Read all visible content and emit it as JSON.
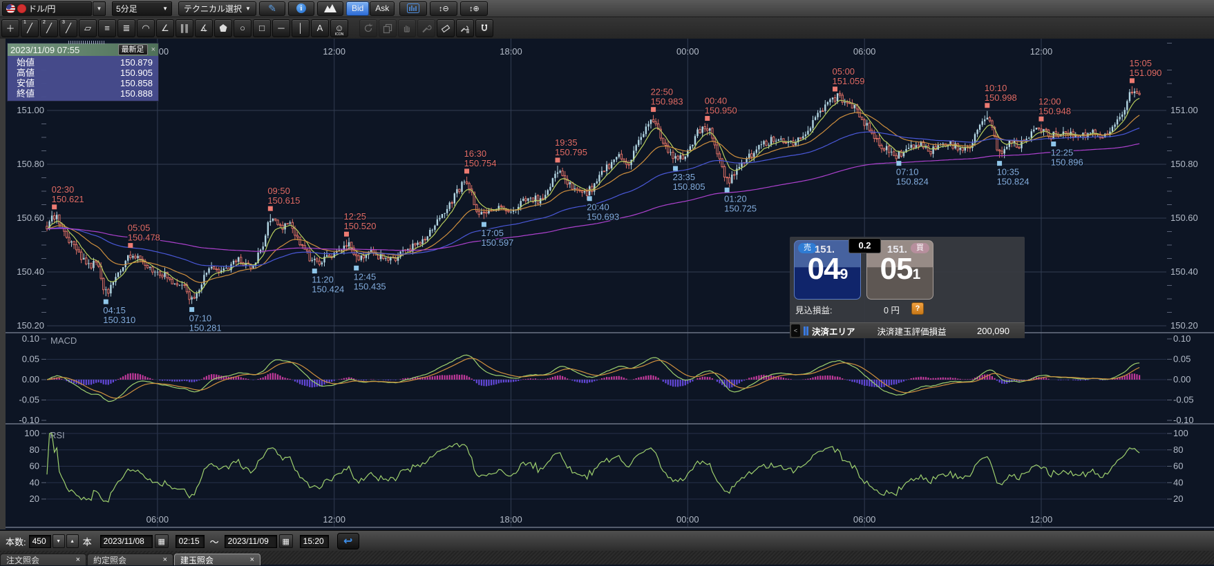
{
  "toolbar": {
    "pair": "ドル/円",
    "timeframe": "5分足",
    "technical_button": "テクニカル選択",
    "bid": "Bid",
    "ask": "Ask",
    "dropdown_glyph": "▼",
    "zoom_out_glyph": "↕⊖",
    "zoom_in_glyph": "↕⊕",
    "pencil_glyph": "✎",
    "info_glyph": "i"
  },
  "tools": [
    {
      "name": "crosshair-tool",
      "glyph": "＋"
    },
    {
      "name": "trendline-1-tool",
      "glyph": "╱",
      "badge": "1"
    },
    {
      "name": "trendline-2-tool",
      "glyph": "╱",
      "badge": "2"
    },
    {
      "name": "trendline-3-tool",
      "glyph": "╱",
      "badge": "3"
    },
    {
      "name": "ruler-tool",
      "glyph": "▱"
    },
    {
      "name": "parallel-lines-tool",
      "glyph": "≡"
    },
    {
      "name": "multi-lines-tool",
      "glyph": "≣"
    },
    {
      "name": "fibonacci-arc-tool",
      "glyph": "◠"
    },
    {
      "name": "fibonacci-fan-tool",
      "glyph": "∠"
    },
    {
      "name": "vertical-lines-tool",
      "glyph": "∥∥"
    },
    {
      "name": "gann-fan-tool",
      "glyph": "∡"
    },
    {
      "name": "pentagon-tool",
      "shape": "penta"
    },
    {
      "name": "ellipse-tool",
      "glyph": "○"
    },
    {
      "name": "rectangle-tool",
      "glyph": "□"
    },
    {
      "name": "horizontal-line-tool",
      "glyph": "─"
    },
    {
      "name": "vertical-line-tool",
      "glyph": "│"
    },
    {
      "name": "text-tool",
      "glyph": "A"
    },
    {
      "name": "icon-stamp-tool",
      "glyph": "☺",
      "label": "ICON"
    },
    {
      "name": "time-jump-tool",
      "shape": "undo",
      "disabled": true,
      "gap": true
    },
    {
      "name": "copy-tool",
      "shape": "copy",
      "disabled": true
    },
    {
      "name": "hand-tool",
      "shape": "hand",
      "disabled": true
    },
    {
      "name": "wrench-tool",
      "shape": "wrench",
      "disabled": true
    },
    {
      "name": "eraser-tool",
      "shape": "eraser"
    },
    {
      "name": "settings-tool",
      "shape": "settings"
    },
    {
      "name": "magnet-tool",
      "shape": "magnet"
    }
  ],
  "info_box": {
    "datetime": "2023/11/09 07:55",
    "latest_button": "最新足",
    "close_icon": "×",
    "rows": [
      {
        "label": "始値",
        "value": "150.879"
      },
      {
        "label": "高値",
        "value": "150.905"
      },
      {
        "label": "安値",
        "value": "150.858"
      },
      {
        "label": "終値",
        "value": "150.888"
      }
    ]
  },
  "order_panel": {
    "sell_badge": "売",
    "buy_badge": "買",
    "spread": "0.2",
    "sell_prefix": "151.",
    "sell_main": "04",
    "sell_sub": "9",
    "buy_prefix": "151.",
    "buy_main": "05",
    "buy_sub": "1",
    "pl_label": "見込損益:",
    "pl_value": "0 円",
    "help_glyph": "?",
    "footer_area": "決済エリア",
    "footer_label": "決済建玉評価損益",
    "footer_value": "200,090",
    "collapse_glyph": "<"
  },
  "bottom_bar": {
    "count_label": "本数:",
    "count": "450",
    "unit": "本",
    "from_date": "2023/11/08",
    "from_time": "02:15",
    "tilde": "～",
    "to_date": "2023/11/09",
    "to_time": "15:20",
    "down_glyph": "▼",
    "up_glyph": "▲",
    "calendar_glyph": "▦",
    "return_glyph": "↩"
  },
  "tabs": [
    {
      "label": "注文照会",
      "close": "×",
      "active": false
    },
    {
      "label": "約定照会",
      "close": "×",
      "active": false
    },
    {
      "label": "建玉照会",
      "close": "×",
      "active": true
    }
  ],
  "chart_data": {
    "type": "candlestick",
    "pair": "ドル/円",
    "timeframe": "5分足",
    "range_start": "2023/11/08 02:15",
    "range_end": "2023/11/09 15:20",
    "bars_setting": 450,
    "price_axis": {
      "ticks": [
        "151.00",
        "150.80",
        "150.60",
        "150.40",
        "150.20"
      ],
      "tick_values": [
        151.0,
        150.8,
        150.6,
        150.4,
        150.2
      ],
      "minor_step": 0.05,
      "min": 150.16,
      "max": 151.27
    },
    "time_axis": {
      "labels": [
        "06:00",
        "12:00",
        "18:00",
        "00:00",
        "06:00",
        "12:00"
      ],
      "label_bars": [
        45,
        117,
        189,
        261,
        333,
        405
      ]
    },
    "macd_panel": {
      "label": "MACD",
      "ticks": [
        "0.10",
        "0.05",
        "0.00",
        "-0.05",
        "-0.10"
      ],
      "tick_values": [
        0.1,
        0.05,
        0.0,
        -0.05,
        -0.1
      ],
      "params": {
        "fast": 12,
        "slow": 26,
        "signal": 9
      }
    },
    "rsi_panel": {
      "label": "RSI",
      "ticks": [
        "100",
        "80",
        "60",
        "40",
        "20"
      ],
      "tick_values": [
        100,
        80,
        60,
        40,
        20
      ],
      "period": 14
    },
    "moving_averages": [
      {
        "period": 7,
        "color": "#b9cf5e"
      },
      {
        "period": 25,
        "color": "#cf8f3e"
      },
      {
        "period": 75,
        "color": "#4a58d8"
      },
      {
        "period": 200,
        "color": "#ad41ce"
      }
    ],
    "annotations": [
      {
        "time": "02:30",
        "price": "150.621",
        "kind": "high",
        "bar": 3
      },
      {
        "time": "05:05",
        "price": "150.478",
        "kind": "high",
        "bar": 34
      },
      {
        "time": "09:50",
        "price": "150.615",
        "kind": "high",
        "bar": 91
      },
      {
        "time": "12:25",
        "price": "150.520",
        "kind": "high",
        "bar": 122
      },
      {
        "time": "16:30",
        "price": "150.754",
        "kind": "high",
        "bar": 171
      },
      {
        "time": "19:35",
        "price": "150.795",
        "kind": "high",
        "bar": 208
      },
      {
        "time": "22:50",
        "price": "150.983",
        "kind": "high",
        "bar": 247
      },
      {
        "time": "00:40",
        "price": "150.950",
        "kind": "high",
        "bar": 269
      },
      {
        "time": "05:00",
        "price": "151.059",
        "kind": "high",
        "bar": 321
      },
      {
        "time": "10:10",
        "price": "150.998",
        "kind": "high",
        "bar": 383
      },
      {
        "time": "12:00",
        "price": "150.948",
        "kind": "high",
        "bar": 405
      },
      {
        "time": "15:05",
        "price": "151.090",
        "kind": "high",
        "bar": 442
      },
      {
        "time": "04:15",
        "price": "150.310",
        "kind": "low",
        "bar": 24
      },
      {
        "time": "07:10",
        "price": "150.281",
        "kind": "low",
        "bar": 59
      },
      {
        "time": "11:20",
        "price": "150.424",
        "kind": "low",
        "bar": 109
      },
      {
        "time": "12:45",
        "price": "150.435",
        "kind": "low",
        "bar": 126
      },
      {
        "time": "17:05",
        "price": "150.597",
        "kind": "low",
        "bar": 178
      },
      {
        "time": "20:40",
        "price": "150.693",
        "kind": "low",
        "bar": 221
      },
      {
        "time": "23:35",
        "price": "150.805",
        "kind": "low",
        "bar": 256
      },
      {
        "time": "01:20",
        "price": "150.725",
        "kind": "low",
        "bar": 277
      },
      {
        "time": "07:10",
        "price": "150.824",
        "kind": "low",
        "bar": 347
      },
      {
        "time": "10:35",
        "price": "150.824",
        "kind": "low",
        "bar": 388
      },
      {
        "time": "12:25",
        "price": "150.896",
        "kind": "low",
        "bar": 410
      }
    ],
    "price_path_anchors": [
      [
        0,
        150.56,
        "S"
      ],
      [
        3,
        150.621,
        "H"
      ],
      [
        10,
        150.5,
        "S"
      ],
      [
        14,
        150.46,
        "S"
      ],
      [
        18,
        150.42,
        "S"
      ],
      [
        20,
        150.445,
        "S"
      ],
      [
        24,
        150.31,
        "L"
      ],
      [
        29,
        150.4,
        "S"
      ],
      [
        34,
        150.478,
        "H"
      ],
      [
        40,
        150.42,
        "S"
      ],
      [
        46,
        150.4,
        "S"
      ],
      [
        51,
        150.365,
        "S"
      ],
      [
        55,
        150.36,
        "S"
      ],
      [
        59,
        150.281,
        "L"
      ],
      [
        66,
        150.42,
        "S"
      ],
      [
        72,
        150.4,
        "S"
      ],
      [
        78,
        150.445,
        "S"
      ],
      [
        84,
        150.42,
        "S"
      ],
      [
        88,
        150.5,
        "S"
      ],
      [
        91,
        150.615,
        "H"
      ],
      [
        95,
        150.56,
        "S"
      ],
      [
        99,
        150.575,
        "S"
      ],
      [
        104,
        150.5,
        "S"
      ],
      [
        109,
        150.424,
        "L"
      ],
      [
        114,
        150.46,
        "S"
      ],
      [
        118,
        150.47,
        "S"
      ],
      [
        122,
        150.52,
        "H"
      ],
      [
        126,
        150.435,
        "L"
      ],
      [
        132,
        150.475,
        "S"
      ],
      [
        137,
        150.45,
        "S"
      ],
      [
        141,
        150.445,
        "S"
      ],
      [
        147,
        150.48,
        "S"
      ],
      [
        153,
        150.52,
        "S"
      ],
      [
        160,
        150.6,
        "S"
      ],
      [
        166,
        150.68,
        "S"
      ],
      [
        171,
        150.754,
        "H"
      ],
      [
        174,
        150.65,
        "S"
      ],
      [
        178,
        150.597,
        "L"
      ],
      [
        184,
        150.65,
        "S"
      ],
      [
        190,
        150.62,
        "S"
      ],
      [
        196,
        150.68,
        "S"
      ],
      [
        202,
        150.66,
        "S"
      ],
      [
        208,
        150.795,
        "H"
      ],
      [
        214,
        150.71,
        "S"
      ],
      [
        221,
        150.693,
        "L"
      ],
      [
        227,
        150.78,
        "S"
      ],
      [
        233,
        150.83,
        "S"
      ],
      [
        237,
        150.8,
        "S"
      ],
      [
        241,
        150.88,
        "S"
      ],
      [
        247,
        150.983,
        "H"
      ],
      [
        251,
        150.87,
        "S"
      ],
      [
        256,
        150.805,
        "L"
      ],
      [
        261,
        150.85,
        "S"
      ],
      [
        265,
        150.92,
        "S"
      ],
      [
        269,
        150.95,
        "H"
      ],
      [
        272,
        150.88,
        "S"
      ],
      [
        277,
        150.725,
        "L"
      ],
      [
        283,
        150.8,
        "S"
      ],
      [
        289,
        150.86,
        "S"
      ],
      [
        297,
        150.9,
        "S"
      ],
      [
        305,
        150.88,
        "S"
      ],
      [
        313,
        150.97,
        "S"
      ],
      [
        317,
        151.01,
        "S"
      ],
      [
        321,
        151.059,
        "H"
      ],
      [
        329,
        151.01,
        "S"
      ],
      [
        335,
        150.93,
        "S"
      ],
      [
        341,
        150.86,
        "S"
      ],
      [
        347,
        150.824,
        "L"
      ],
      [
        354,
        150.88,
        "S"
      ],
      [
        360,
        150.85,
        "S"
      ],
      [
        368,
        150.875,
        "S"
      ],
      [
        375,
        150.85,
        "S"
      ],
      [
        379,
        150.92,
        "S"
      ],
      [
        383,
        150.998,
        "H"
      ],
      [
        388,
        150.824,
        "L"
      ],
      [
        392,
        150.895,
        "S"
      ],
      [
        396,
        150.87,
        "S"
      ],
      [
        400,
        150.91,
        "S"
      ],
      [
        405,
        150.948,
        "H"
      ],
      [
        410,
        150.896,
        "L"
      ],
      [
        415,
        150.92,
        "S"
      ],
      [
        420,
        150.9,
        "S"
      ],
      [
        425,
        150.915,
        "S"
      ],
      [
        430,
        150.91,
        "S"
      ],
      [
        434,
        150.93,
        "S"
      ],
      [
        438,
        150.985,
        "S"
      ],
      [
        440,
        151.03,
        "S"
      ],
      [
        442,
        151.09,
        "H"
      ],
      [
        445,
        151.07,
        "S"
      ]
    ],
    "colors": {
      "bg": "#0d1524",
      "grid": "#323d52",
      "minor_tick": "#5b6478",
      "axis_text": "#b4bcc9",
      "candle_up": "#b2d6e3",
      "candle_down": "#dd6f65",
      "label_high": "#e06a64",
      "label_low": "#82abdc",
      "marker_high": "#ed7b72",
      "marker_low": "#8fc6ea",
      "macd_hist_pos": "#c2399b",
      "macd_hist_neg": "#6248d8",
      "macd_line": "#9ed06e",
      "signal_line": "#d0903e",
      "rsi_line": "#9ed06e",
      "divider": "#6d7585"
    }
  }
}
